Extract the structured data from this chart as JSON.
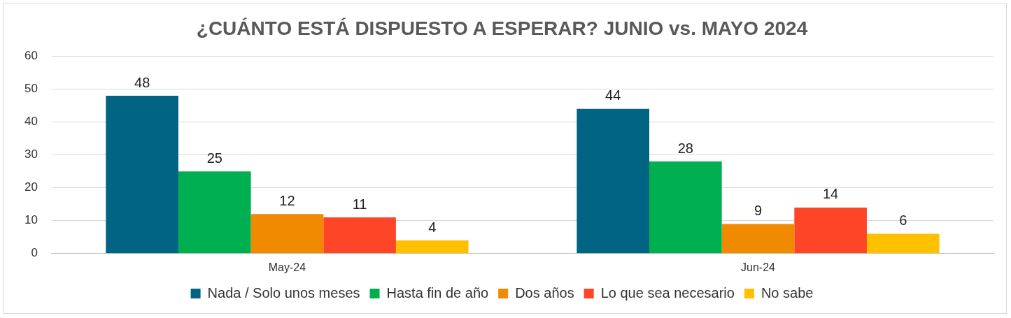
{
  "chart_data": {
    "type": "bar",
    "title": "¿CUÁNTO ESTÁ DISPUESTO A ESPERAR? JUNIO vs. MAYO 2024",
    "categories": [
      "May-24",
      "Jun-24"
    ],
    "series": [
      {
        "name": "Nada / Solo unos meses",
        "color": "#006482",
        "values": [
          48,
          44
        ]
      },
      {
        "name": "Hasta fin de año",
        "color": "#00b050",
        "values": [
          25,
          28
        ]
      },
      {
        "name": "Dos años",
        "color": "#f08a00",
        "values": [
          12,
          9
        ]
      },
      {
        "name": "Lo que sea necesario",
        "color": "#ff4528",
        "values": [
          11,
          14
        ]
      },
      {
        "name": "No sabe",
        "color": "#ffc000",
        "values": [
          4,
          6
        ]
      }
    ],
    "ylim": [
      0,
      60
    ],
    "yticks": [
      0,
      10,
      20,
      30,
      40,
      50,
      60
    ],
    "grid": "y",
    "legend": "bottom",
    "data_labels": true
  }
}
